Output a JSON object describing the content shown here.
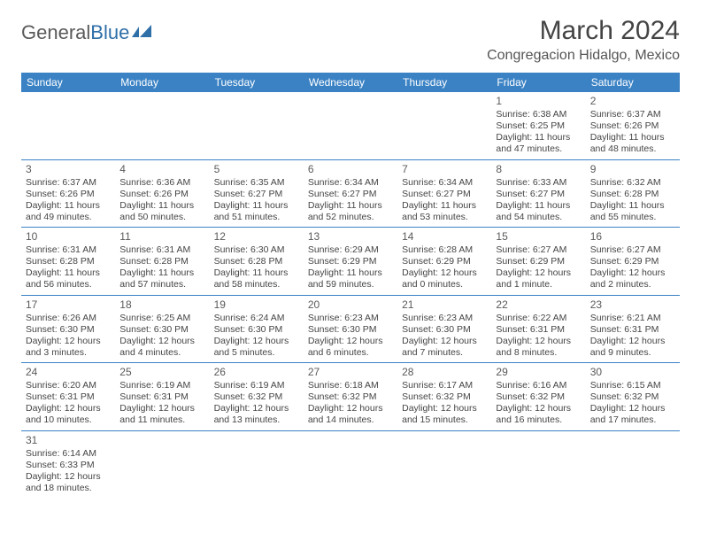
{
  "logo": {
    "text1": "General",
    "text2": "Blue"
  },
  "title": "March 2024",
  "location": "Congregacion Hidalgo, Mexico",
  "colors": {
    "header_bg": "#3b82c4",
    "header_fg": "#ffffff",
    "text": "#454545",
    "divider": "#3b82c4"
  },
  "weekdays": [
    "Sunday",
    "Monday",
    "Tuesday",
    "Wednesday",
    "Thursday",
    "Friday",
    "Saturday"
  ],
  "weeks": [
    [
      null,
      null,
      null,
      null,
      null,
      {
        "n": "1",
        "sr": "Sunrise: 6:38 AM",
        "ss": "Sunset: 6:25 PM",
        "d1": "Daylight: 11 hours",
        "d2": "and 47 minutes."
      },
      {
        "n": "2",
        "sr": "Sunrise: 6:37 AM",
        "ss": "Sunset: 6:26 PM",
        "d1": "Daylight: 11 hours",
        "d2": "and 48 minutes."
      }
    ],
    [
      {
        "n": "3",
        "sr": "Sunrise: 6:37 AM",
        "ss": "Sunset: 6:26 PM",
        "d1": "Daylight: 11 hours",
        "d2": "and 49 minutes."
      },
      {
        "n": "4",
        "sr": "Sunrise: 6:36 AM",
        "ss": "Sunset: 6:26 PM",
        "d1": "Daylight: 11 hours",
        "d2": "and 50 minutes."
      },
      {
        "n": "5",
        "sr": "Sunrise: 6:35 AM",
        "ss": "Sunset: 6:27 PM",
        "d1": "Daylight: 11 hours",
        "d2": "and 51 minutes."
      },
      {
        "n": "6",
        "sr": "Sunrise: 6:34 AM",
        "ss": "Sunset: 6:27 PM",
        "d1": "Daylight: 11 hours",
        "d2": "and 52 minutes."
      },
      {
        "n": "7",
        "sr": "Sunrise: 6:34 AM",
        "ss": "Sunset: 6:27 PM",
        "d1": "Daylight: 11 hours",
        "d2": "and 53 minutes."
      },
      {
        "n": "8",
        "sr": "Sunrise: 6:33 AM",
        "ss": "Sunset: 6:27 PM",
        "d1": "Daylight: 11 hours",
        "d2": "and 54 minutes."
      },
      {
        "n": "9",
        "sr": "Sunrise: 6:32 AM",
        "ss": "Sunset: 6:28 PM",
        "d1": "Daylight: 11 hours",
        "d2": "and 55 minutes."
      }
    ],
    [
      {
        "n": "10",
        "sr": "Sunrise: 6:31 AM",
        "ss": "Sunset: 6:28 PM",
        "d1": "Daylight: 11 hours",
        "d2": "and 56 minutes."
      },
      {
        "n": "11",
        "sr": "Sunrise: 6:31 AM",
        "ss": "Sunset: 6:28 PM",
        "d1": "Daylight: 11 hours",
        "d2": "and 57 minutes."
      },
      {
        "n": "12",
        "sr": "Sunrise: 6:30 AM",
        "ss": "Sunset: 6:28 PM",
        "d1": "Daylight: 11 hours",
        "d2": "and 58 minutes."
      },
      {
        "n": "13",
        "sr": "Sunrise: 6:29 AM",
        "ss": "Sunset: 6:29 PM",
        "d1": "Daylight: 11 hours",
        "d2": "and 59 minutes."
      },
      {
        "n": "14",
        "sr": "Sunrise: 6:28 AM",
        "ss": "Sunset: 6:29 PM",
        "d1": "Daylight: 12 hours",
        "d2": "and 0 minutes."
      },
      {
        "n": "15",
        "sr": "Sunrise: 6:27 AM",
        "ss": "Sunset: 6:29 PM",
        "d1": "Daylight: 12 hours",
        "d2": "and 1 minute."
      },
      {
        "n": "16",
        "sr": "Sunrise: 6:27 AM",
        "ss": "Sunset: 6:29 PM",
        "d1": "Daylight: 12 hours",
        "d2": "and 2 minutes."
      }
    ],
    [
      {
        "n": "17",
        "sr": "Sunrise: 6:26 AM",
        "ss": "Sunset: 6:30 PM",
        "d1": "Daylight: 12 hours",
        "d2": "and 3 minutes."
      },
      {
        "n": "18",
        "sr": "Sunrise: 6:25 AM",
        "ss": "Sunset: 6:30 PM",
        "d1": "Daylight: 12 hours",
        "d2": "and 4 minutes."
      },
      {
        "n": "19",
        "sr": "Sunrise: 6:24 AM",
        "ss": "Sunset: 6:30 PM",
        "d1": "Daylight: 12 hours",
        "d2": "and 5 minutes."
      },
      {
        "n": "20",
        "sr": "Sunrise: 6:23 AM",
        "ss": "Sunset: 6:30 PM",
        "d1": "Daylight: 12 hours",
        "d2": "and 6 minutes."
      },
      {
        "n": "21",
        "sr": "Sunrise: 6:23 AM",
        "ss": "Sunset: 6:30 PM",
        "d1": "Daylight: 12 hours",
        "d2": "and 7 minutes."
      },
      {
        "n": "22",
        "sr": "Sunrise: 6:22 AM",
        "ss": "Sunset: 6:31 PM",
        "d1": "Daylight: 12 hours",
        "d2": "and 8 minutes."
      },
      {
        "n": "23",
        "sr": "Sunrise: 6:21 AM",
        "ss": "Sunset: 6:31 PM",
        "d1": "Daylight: 12 hours",
        "d2": "and 9 minutes."
      }
    ],
    [
      {
        "n": "24",
        "sr": "Sunrise: 6:20 AM",
        "ss": "Sunset: 6:31 PM",
        "d1": "Daylight: 12 hours",
        "d2": "and 10 minutes."
      },
      {
        "n": "25",
        "sr": "Sunrise: 6:19 AM",
        "ss": "Sunset: 6:31 PM",
        "d1": "Daylight: 12 hours",
        "d2": "and 11 minutes."
      },
      {
        "n": "26",
        "sr": "Sunrise: 6:19 AM",
        "ss": "Sunset: 6:32 PM",
        "d1": "Daylight: 12 hours",
        "d2": "and 13 minutes."
      },
      {
        "n": "27",
        "sr": "Sunrise: 6:18 AM",
        "ss": "Sunset: 6:32 PM",
        "d1": "Daylight: 12 hours",
        "d2": "and 14 minutes."
      },
      {
        "n": "28",
        "sr": "Sunrise: 6:17 AM",
        "ss": "Sunset: 6:32 PM",
        "d1": "Daylight: 12 hours",
        "d2": "and 15 minutes."
      },
      {
        "n": "29",
        "sr": "Sunrise: 6:16 AM",
        "ss": "Sunset: 6:32 PM",
        "d1": "Daylight: 12 hours",
        "d2": "and 16 minutes."
      },
      {
        "n": "30",
        "sr": "Sunrise: 6:15 AM",
        "ss": "Sunset: 6:32 PM",
        "d1": "Daylight: 12 hours",
        "d2": "and 17 minutes."
      }
    ],
    [
      {
        "n": "31",
        "sr": "Sunrise: 6:14 AM",
        "ss": "Sunset: 6:33 PM",
        "d1": "Daylight: 12 hours",
        "d2": "and 18 minutes."
      },
      null,
      null,
      null,
      null,
      null,
      null
    ]
  ]
}
